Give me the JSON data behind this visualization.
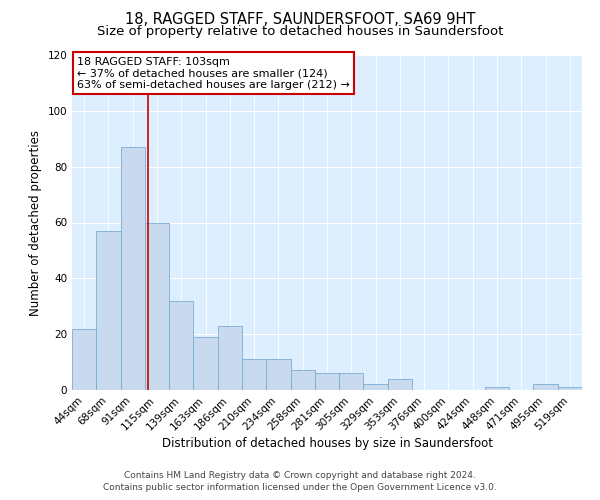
{
  "title": "18, RAGGED STAFF, SAUNDERSFOOT, SA69 9HT",
  "subtitle": "Size of property relative to detached houses in Saundersfoot",
  "xlabel": "Distribution of detached houses by size in Saundersfoot",
  "ylabel": "Number of detached properties",
  "bar_labels": [
    "44sqm",
    "68sqm",
    "91sqm",
    "115sqm",
    "139sqm",
    "163sqm",
    "186sqm",
    "210sqm",
    "234sqm",
    "258sqm",
    "281sqm",
    "305sqm",
    "329sqm",
    "353sqm",
    "376sqm",
    "400sqm",
    "424sqm",
    "448sqm",
    "471sqm",
    "495sqm",
    "519sqm"
  ],
  "bar_values": [
    22,
    57,
    87,
    60,
    32,
    19,
    23,
    11,
    11,
    7,
    6,
    6,
    2,
    4,
    0,
    0,
    0,
    1,
    0,
    2,
    1
  ],
  "bar_color": "#c9d9ee",
  "bar_edge_color": "#7aadd4",
  "vline_color": "#cc0000",
  "vline_pos": 2.62,
  "annotation_title": "18 RAGGED STAFF: 103sqm",
  "annotation_line1": "← 37% of detached houses are smaller (124)",
  "annotation_line2": "63% of semi-detached houses are larger (212) →",
  "annotation_box_color": "#cc0000",
  "ylim": [
    0,
    120
  ],
  "yticks": [
    0,
    20,
    40,
    60,
    80,
    100,
    120
  ],
  "footer1": "Contains HM Land Registry data © Crown copyright and database right 2024.",
  "footer2": "Contains public sector information licensed under the Open Government Licence v3.0.",
  "fig_bg_color": "#ffffff",
  "plot_bg_color": "#ddeeff",
  "title_fontsize": 10.5,
  "subtitle_fontsize": 9.5,
  "axis_label_fontsize": 8.5,
  "tick_fontsize": 7.5,
  "footer_fontsize": 6.5,
  "ann_fontsize": 8
}
